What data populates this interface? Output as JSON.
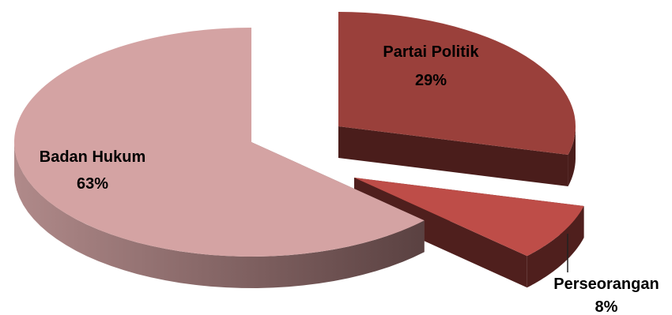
{
  "chart_data": {
    "type": "pie",
    "style": "3d-exploded",
    "slices": [
      {
        "label": "Partai Politik",
        "value": 29,
        "display": "29%",
        "color": "#9a403b",
        "side_color": "#4a1d1b"
      },
      {
        "label": "Perseorangan",
        "value": 8,
        "display": "8%",
        "color": "#be4d48",
        "side_color": "#4f1f1d"
      },
      {
        "label": "Badan Hukum",
        "value": 63,
        "display": "63%",
        "color": "#d4a3a3",
        "side_color": "#7a5e5e"
      }
    ]
  }
}
